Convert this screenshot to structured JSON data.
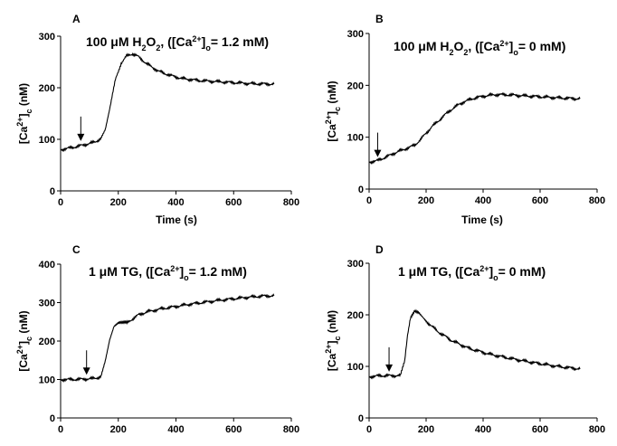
{
  "chart_data": [
    {
      "panel": "A",
      "type": "line",
      "title_parts": [
        "100 μM H",
        "2",
        "O",
        "2",
        ", ([Ca",
        "2+",
        "]",
        "o",
        "= 1.2 mM)"
      ],
      "xlabel": "Time (s)",
      "ylabel_parts": [
        "[Ca",
        "2+",
        "]",
        "c",
        " (nM)"
      ],
      "xlim": [
        0,
        800
      ],
      "ylim": [
        0,
        300
      ],
      "xticks": [
        0,
        200,
        400,
        600,
        800
      ],
      "yticks": [
        0,
        100,
        200,
        300
      ],
      "arrow_at": {
        "x": 70,
        "y": 95
      },
      "series": [
        {
          "x": [
            0,
            40,
            80,
            120,
            140,
            155,
            170,
            190,
            210,
            230,
            250,
            270,
            300,
            340,
            380,
            420,
            480,
            540,
            600,
            660,
            740
          ],
          "y": [
            80,
            84,
            89,
            95,
            102,
            120,
            160,
            215,
            248,
            262,
            266,
            260,
            246,
            232,
            224,
            218,
            214,
            212,
            210,
            208,
            207
          ]
        }
      ]
    },
    {
      "panel": "B",
      "type": "line",
      "title_parts": [
        "100 μM H",
        "2",
        "O",
        "2",
        ", ([Ca",
        "2+",
        "]",
        "o",
        "= 0 mM)"
      ],
      "xlabel": "Time (s)",
      "ylabel_parts": [
        "[Ca",
        "2+",
        "]",
        "c",
        " (nM)"
      ],
      "xlim": [
        0,
        800
      ],
      "ylim": [
        0,
        300
      ],
      "xticks": [
        0,
        200,
        400,
        600,
        800
      ],
      "yticks": [
        0,
        100,
        200,
        300
      ],
      "arrow_at": {
        "x": 30,
        "y": 60
      },
      "series": [
        {
          "x": [
            0,
            30,
            60,
            100,
            140,
            160,
            180,
            200,
            220,
            250,
            280,
            320,
            360,
            400,
            440,
            480,
            540,
            600,
            660,
            740
          ],
          "y": [
            52,
            55,
            62,
            72,
            80,
            85,
            95,
            108,
            120,
            135,
            150,
            165,
            174,
            179,
            182,
            182,
            180,
            178,
            176,
            174
          ]
        }
      ]
    },
    {
      "panel": "C",
      "type": "line",
      "title_parts": [
        "1 μM TG, ([Ca",
        "2+",
        "]",
        "o",
        "= 1.2 mM)"
      ],
      "xlabel": "",
      "ylabel_parts": [
        "[Ca",
        "2+",
        "]",
        "c",
        " (nM)"
      ],
      "xlim": [
        0,
        800
      ],
      "ylim": [
        0,
        400
      ],
      "xticks": [
        0,
        200,
        400,
        600,
        800
      ],
      "yticks": [
        0,
        100,
        200,
        300,
        400
      ],
      "arrow_at": {
        "x": 90,
        "y": 110
      },
      "series": [
        {
          "x": [
            0,
            40,
            80,
            120,
            140,
            155,
            170,
            185,
            200,
            215,
            230,
            250,
            270,
            300,
            350,
            400,
            450,
            500,
            550,
            600,
            650,
            700,
            740
          ],
          "y": [
            100,
            100,
            101,
            103,
            108,
            150,
            205,
            240,
            248,
            248,
            247,
            258,
            268,
            276,
            284,
            290,
            296,
            301,
            306,
            310,
            314,
            317,
            318
          ]
        }
      ]
    },
    {
      "panel": "D",
      "type": "line",
      "title_parts": [
        "1 μM TG, ([Ca",
        "2+",
        "]",
        "o",
        "= 0 mM)"
      ],
      "xlabel": "",
      "ylabel_parts": [
        "[Ca",
        "2+",
        "]",
        "c",
        " (nM)"
      ],
      "xlim": [
        0,
        800
      ],
      "ylim": [
        0,
        300
      ],
      "xticks": [
        0,
        200,
        400,
        600,
        800
      ],
      "yticks": [
        0,
        100,
        200,
        300
      ],
      "arrow_at": {
        "x": 70,
        "y": 88
      },
      "series": [
        {
          "x": [
            0,
            40,
            80,
            110,
            125,
            135,
            145,
            160,
            175,
            200,
            240,
            290,
            350,
            420,
            500,
            580,
            660,
            740
          ],
          "y": [
            80,
            82,
            82,
            82,
            110,
            160,
            195,
            208,
            203,
            188,
            168,
            150,
            135,
            124,
            115,
            107,
            100,
            95
          ]
        }
      ]
    }
  ]
}
